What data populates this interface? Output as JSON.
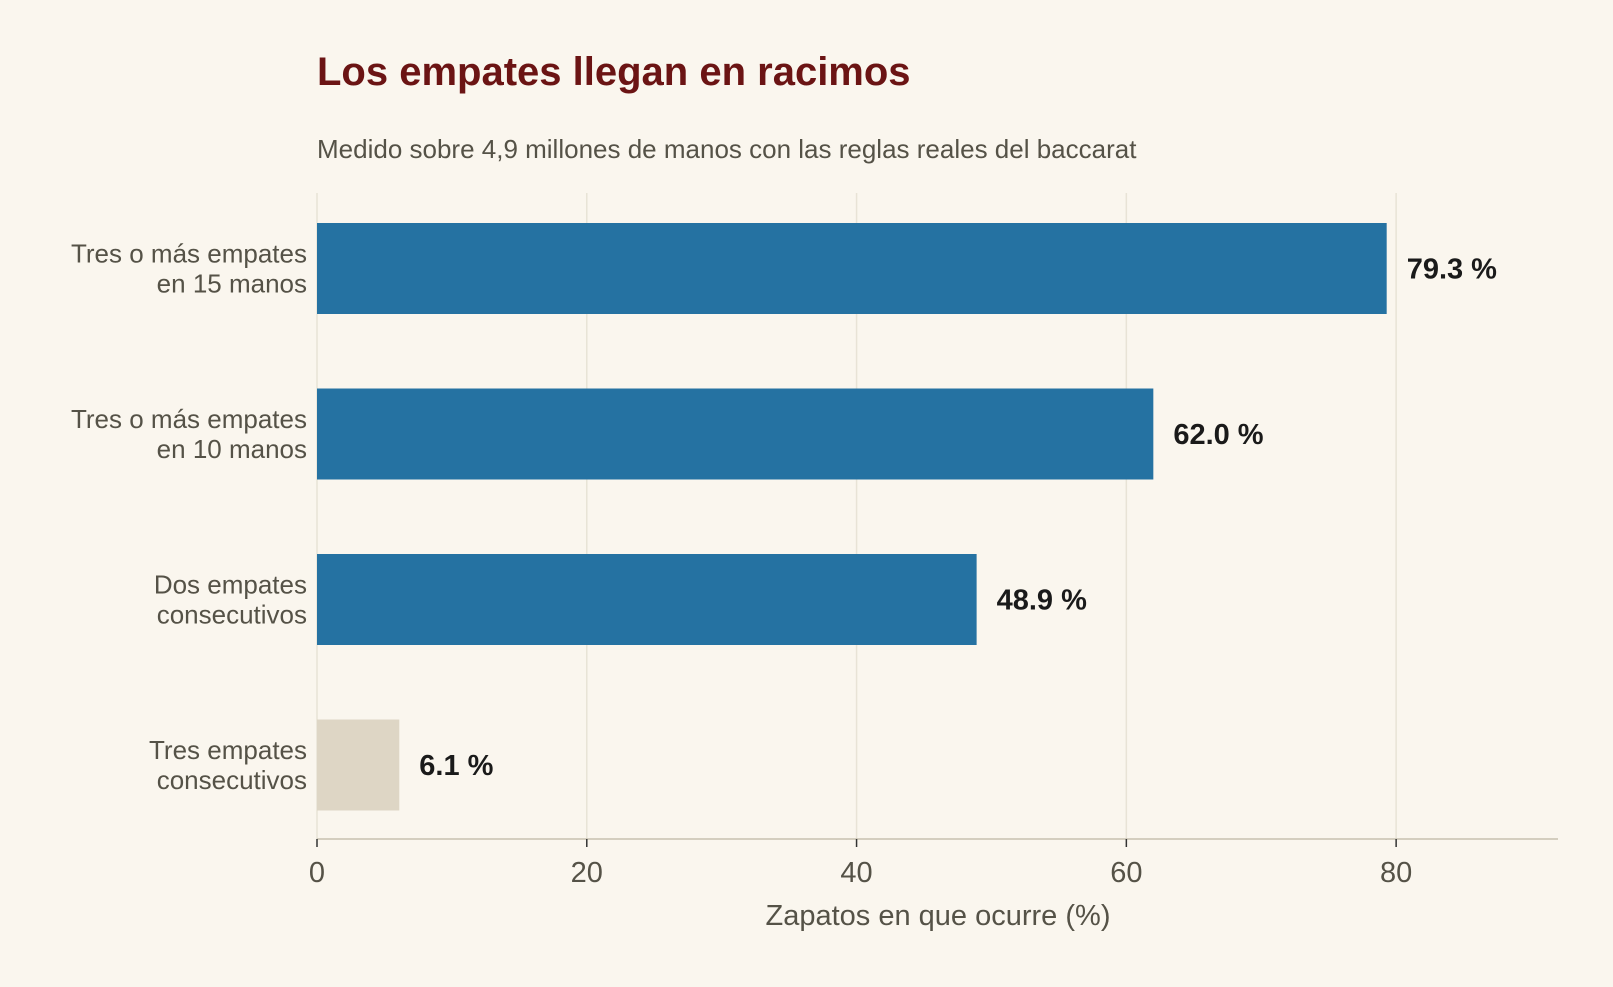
{
  "chart_data": {
    "type": "bar",
    "orientation": "horizontal",
    "title": "Los empates llegan en racimos",
    "subtitle": "Medido sobre 4,9 millones de manos con las reglas reales del baccarat",
    "xlabel": "Zapatos en que ocurre (%)",
    "ylabel": "",
    "categories": [
      [
        "Tres o más empates",
        "en 15 manos"
      ],
      [
        "Tres o más empates",
        "en 10 manos"
      ],
      [
        "Dos empates",
        "consecutivos"
      ],
      [
        "Tres empates",
        "consecutivos"
      ]
    ],
    "values": [
      79.3,
      62.0,
      48.9,
      6.1
    ],
    "value_labels": [
      "79.3 %",
      "62.0 %",
      "48.9 %",
      "6.1 %"
    ],
    "highlight": [
      true,
      true,
      true,
      false
    ],
    "xlim": [
      0,
      92
    ],
    "xticks": [
      0,
      20,
      40,
      60,
      80
    ],
    "xtick_labels": [
      "0",
      "20",
      "40",
      "60",
      "80"
    ],
    "grid": "vertical",
    "legend": "none"
  },
  "colors": {
    "background": "#faf6ee",
    "title": "#6b1414",
    "subtitle": "#555247",
    "category_text": "#555247",
    "tick_text": "#555247",
    "value_text": "#1a1a1a",
    "bar_highlight": "#2572a2",
    "bar_muted": "#ded6c5",
    "gridline": "#e8e3d6",
    "axis": "#d4cebf"
  }
}
